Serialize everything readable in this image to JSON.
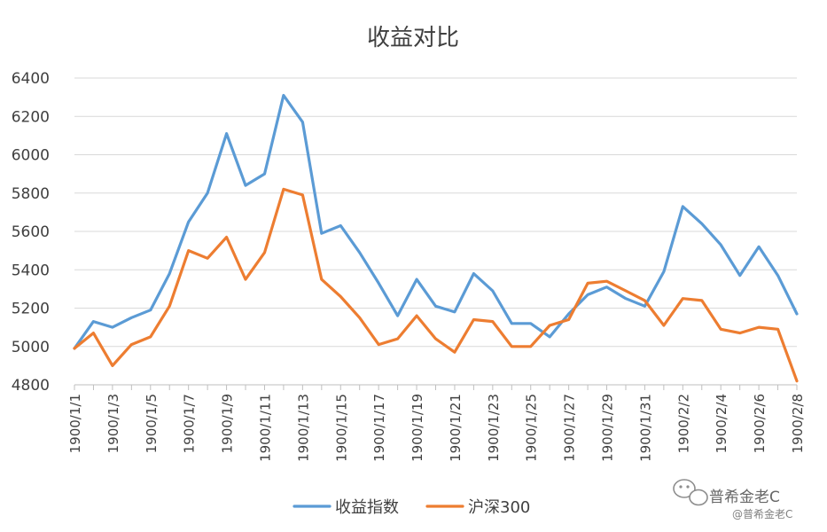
{
  "chart_data": {
    "type": "line",
    "title": "收益对比",
    "xlabel": "",
    "ylabel": "",
    "ylim": [
      4800,
      6400
    ],
    "yticks": [
      4800,
      5000,
      5200,
      5400,
      5600,
      5800,
      6000,
      6200,
      6400
    ],
    "grid": true,
    "legend": "bottom",
    "x": [
      "1900/1/1",
      "1900/1/2",
      "1900/1/3",
      "1900/1/4",
      "1900/1/5",
      "1900/1/6",
      "1900/1/7",
      "1900/1/8",
      "1900/1/9",
      "1900/1/10",
      "1900/1/11",
      "1900/1/12",
      "1900/1/13",
      "1900/1/14",
      "1900/1/15",
      "1900/1/16",
      "1900/1/17",
      "1900/1/18",
      "1900/1/19",
      "1900/1/20",
      "1900/1/21",
      "1900/1/22",
      "1900/1/23",
      "1900/1/24",
      "1900/1/25",
      "1900/1/26",
      "1900/1/27",
      "1900/1/28",
      "1900/1/29",
      "1900/1/30",
      "1900/1/31",
      "1900/2/1",
      "1900/2/2",
      "1900/2/3",
      "1900/2/4",
      "1900/2/5",
      "1900/2/6",
      "1900/2/7",
      "1900/2/8"
    ],
    "xtick_labels": [
      "1900/1/1",
      "1900/1/3",
      "1900/1/5",
      "1900/1/7",
      "1900/1/9",
      "1900/1/11",
      "1900/1/13",
      "1900/1/15",
      "1900/1/17",
      "1900/1/19",
      "1900/1/21",
      "1900/1/23",
      "1900/1/25",
      "1900/1/27",
      "1900/1/29",
      "1900/1/31",
      "1900/2/2",
      "1900/2/4",
      "1900/2/6",
      "1900/2/8"
    ],
    "series": [
      {
        "name": "收益指数",
        "color": "#5B9BD5",
        "values": [
          4990,
          5130,
          5100,
          5150,
          5190,
          5380,
          5650,
          5800,
          6110,
          5840,
          5900,
          6310,
          6170,
          5590,
          5630,
          5490,
          5330,
          5160,
          5350,
          5210,
          5180,
          5380,
          5290,
          5120,
          5120,
          5050,
          5170,
          5270,
          5310,
          5250,
          5210,
          5390,
          5730,
          5640,
          5530,
          5370,
          5520,
          5370,
          5170
        ]
      },
      {
        "name": "沪深300",
        "color": "#ED7D31",
        "values": [
          4990,
          5070,
          4900,
          5010,
          5050,
          5210,
          5500,
          5460,
          5570,
          5350,
          5490,
          5820,
          5790,
          5350,
          5260,
          5150,
          5010,
          5040,
          5160,
          5040,
          4970,
          5140,
          5130,
          5000,
          5000,
          5110,
          5140,
          5330,
          5340,
          5290,
          5240,
          5110,
          5250,
          5240,
          5090,
          5070,
          5100,
          5090,
          4820
        ]
      }
    ]
  },
  "watermark": {
    "main": "普希金老C",
    "sub": "@普希金老C"
  }
}
